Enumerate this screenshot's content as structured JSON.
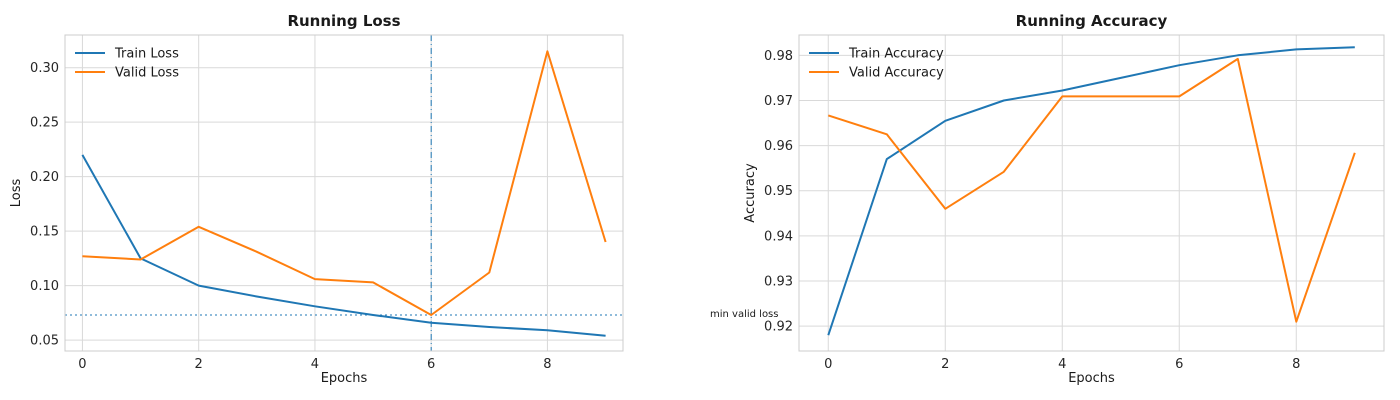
{
  "chart_data": [
    {
      "type": "line",
      "title": "Running Loss",
      "xlabel": "Epochs",
      "ylabel": "Loss",
      "xlim": [
        -0.3,
        9.3
      ],
      "ylim": [
        0.04,
        0.33
      ],
      "xticks": [
        0,
        2,
        4,
        6,
        8
      ],
      "yticks": [
        0.05,
        0.1,
        0.15,
        0.2,
        0.25,
        0.3
      ],
      "ytick_labels": [
        "0.05",
        "0.10",
        "0.15",
        "0.20",
        "0.25",
        "0.30"
      ],
      "grid": true,
      "legend": "top-left",
      "x": [
        0,
        1,
        2,
        3,
        4,
        5,
        6,
        7,
        8,
        9
      ],
      "series": [
        {
          "name": "Train Loss",
          "color": "#1f77b4",
          "values": [
            0.22,
            0.125,
            0.1,
            0.09,
            0.081,
            0.073,
            0.066,
            0.062,
            0.059,
            0.054
          ]
        },
        {
          "name": "Valid Loss",
          "color": "#ff7f0e",
          "values": [
            0.127,
            0.124,
            0.154,
            0.131,
            0.106,
            0.103,
            0.073,
            0.112,
            0.315,
            0.14
          ]
        }
      ],
      "reference_lines": {
        "vline_x": 6,
        "hline_y": 0.073,
        "color": "#1f77b4"
      },
      "annotation": "min valid loss"
    },
    {
      "type": "line",
      "title": "Running Accuracy",
      "xlabel": "Epochs",
      "ylabel": "Accuracy",
      "xlim": [
        -0.5,
        9.5
      ],
      "ylim": [
        0.9145,
        0.9845
      ],
      "xticks": [
        0,
        2,
        4,
        6,
        8
      ],
      "yticks": [
        0.92,
        0.93,
        0.94,
        0.95,
        0.96,
        0.97,
        0.98
      ],
      "ytick_labels": [
        "0.92",
        "0.93",
        "0.94",
        "0.95",
        "0.96",
        "0.97",
        "0.98"
      ],
      "grid": true,
      "legend": "top-left",
      "x": [
        0,
        1,
        2,
        3,
        4,
        5,
        6,
        7,
        8,
        9
      ],
      "series": [
        {
          "name": "Train Accuracy",
          "color": "#1f77b4",
          "values": [
            0.918,
            0.957,
            0.9655,
            0.97,
            0.9722,
            0.975,
            0.9778,
            0.98,
            0.9813,
            0.9818
          ]
        },
        {
          "name": "Valid Accuracy",
          "color": "#ff7f0e",
          "values": [
            0.9667,
            0.9625,
            0.946,
            0.9542,
            0.9709,
            0.9709,
            0.9709,
            0.9792,
            0.921,
            0.9584
          ]
        }
      ]
    }
  ]
}
